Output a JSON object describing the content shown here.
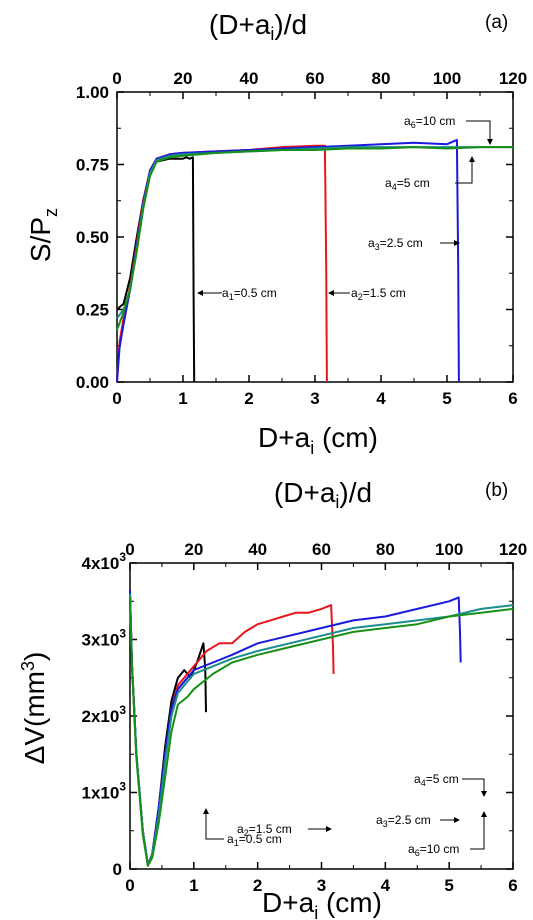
{
  "chart_data": [
    {
      "type": "line",
      "panel_label": "(a)",
      "ylabel": {
        "base": "S/P",
        "sub": "z"
      },
      "xlabel": {
        "base": "D+a",
        "sub": "i",
        "tail": " (cm)"
      },
      "x2label": {
        "pre": "(D+a",
        "sub": "i",
        "post": ")/d"
      },
      "xlim": [
        0,
        6
      ],
      "ylim": [
        0,
        1.0
      ],
      "x2lim": [
        0,
        120
      ],
      "xticks": [
        "0",
        "1",
        "2",
        "3",
        "4",
        "5",
        "6"
      ],
      "x2ticks": [
        "0",
        "20",
        "40",
        "60",
        "80",
        "100",
        "120"
      ],
      "yticks": [
        "0.00",
        "0.25",
        "0.50",
        "0.75",
        "1.00"
      ],
      "grid": false,
      "series": [
        {
          "ai": 0.5,
          "color": "#000000",
          "x": [
            0,
            0.05,
            0.1,
            0.2,
            0.3,
            0.4,
            0.5,
            0.6,
            0.7,
            0.8,
            0.9,
            1.0,
            1.05,
            1.1,
            1.15,
            1.16,
            1.17
          ],
          "y": [
            0.25,
            0.26,
            0.27,
            0.36,
            0.5,
            0.63,
            0.72,
            0.76,
            0.765,
            0.77,
            0.77,
            0.77,
            0.775,
            0.77,
            0.775,
            0.3,
            0.0
          ]
        },
        {
          "ai": 1.5,
          "color": "#e8141c",
          "x": [
            0,
            0.04,
            0.1,
            0.2,
            0.3,
            0.4,
            0.5,
            0.6,
            0.8,
            1.0,
            1.5,
            2.0,
            2.5,
            3.0,
            3.15,
            3.17,
            3.18
          ],
          "y": [
            0.0,
            0.14,
            0.22,
            0.33,
            0.48,
            0.63,
            0.73,
            0.77,
            0.785,
            0.79,
            0.795,
            0.8,
            0.81,
            0.815,
            0.815,
            0.4,
            0.0
          ]
        },
        {
          "ai": 2.5,
          "color": "#1a1adc",
          "x": [
            0,
            0.04,
            0.1,
            0.2,
            0.3,
            0.4,
            0.5,
            0.6,
            0.8,
            1.0,
            1.5,
            2.0,
            2.5,
            3.0,
            3.5,
            4.0,
            4.5,
            5.0,
            5.15,
            5.17,
            5.18
          ],
          "y": [
            0.0,
            0.12,
            0.2,
            0.32,
            0.47,
            0.62,
            0.73,
            0.77,
            0.785,
            0.79,
            0.795,
            0.8,
            0.805,
            0.81,
            0.815,
            0.82,
            0.825,
            0.82,
            0.835,
            0.4,
            0.0
          ]
        },
        {
          "ai": 5,
          "color": "#1c8c8c",
          "x": [
            0,
            0.1,
            0.2,
            0.3,
            0.4,
            0.5,
            0.6,
            0.8,
            1.0,
            1.5,
            2.0,
            2.5,
            3.0,
            3.5,
            4.0,
            4.5,
            5.0,
            5.5,
            6.0
          ],
          "y": [
            0.22,
            0.25,
            0.32,
            0.46,
            0.61,
            0.72,
            0.765,
            0.78,
            0.785,
            0.79,
            0.795,
            0.8,
            0.805,
            0.81,
            0.81,
            0.81,
            0.81,
            0.81,
            0.81
          ]
        },
        {
          "ai": 10,
          "color": "#179017",
          "x": [
            0,
            0.1,
            0.2,
            0.3,
            0.4,
            0.5,
            0.6,
            0.8,
            1.0,
            1.5,
            2.0,
            2.5,
            3.0,
            3.5,
            4.0,
            4.5,
            5.0,
            5.5,
            6.0
          ],
          "y": [
            0.18,
            0.24,
            0.32,
            0.45,
            0.6,
            0.71,
            0.76,
            0.775,
            0.78,
            0.79,
            0.795,
            0.8,
            0.8,
            0.805,
            0.805,
            0.81,
            0.805,
            0.81,
            0.81
          ]
        }
      ],
      "annotations": [
        {
          "text": "a",
          "sub": "1",
          "tail": "=0.5 cm"
        },
        {
          "text": "a",
          "sub": "2",
          "tail": "=1.5 cm"
        },
        {
          "text": "a",
          "sub": "3",
          "tail": "=2.5 cm"
        },
        {
          "text": "a",
          "sub": "4",
          "tail": "=5 cm"
        },
        {
          "text": "a",
          "sub": "6",
          "tail": "=10 cm"
        }
      ]
    },
    {
      "type": "line",
      "panel_label": "(b)",
      "ylabel": {
        "pre": "ΔV(mm",
        "sup": "3",
        "post": ")"
      },
      "xlabel": {
        "base": "D+a",
        "sub": "i",
        "tail": " (cm)"
      },
      "x2label": {
        "pre": "(D+a",
        "sub": "i",
        "post": ")/d"
      },
      "xlim": [
        0,
        6
      ],
      "ylim": [
        0,
        4000
      ],
      "x2lim": [
        0,
        120
      ],
      "xticks": [
        "0",
        "1",
        "2",
        "3",
        "4",
        "5",
        "6"
      ],
      "x2ticks": [
        "0",
        "20",
        "40",
        "60",
        "80",
        "100",
        "120"
      ],
      "yticks": [
        {
          "base": "0",
          "sup": ""
        },
        {
          "base": "1x10",
          "sup": "3"
        },
        {
          "base": "2x10",
          "sup": "3"
        },
        {
          "base": "3x10",
          "sup": "3"
        },
        {
          "base": "4x10",
          "sup": "3"
        }
      ],
      "grid": false,
      "series": [
        {
          "ai": 0.5,
          "color": "#000000",
          "x": [
            0,
            0.03,
            0.1,
            0.2,
            0.28,
            0.35,
            0.45,
            0.55,
            0.65,
            0.75,
            0.85,
            0.95,
            1.05,
            1.15,
            1.18,
            1.19
          ],
          "y": [
            3600,
            2700,
            1500,
            500,
            50,
            200,
            800,
            1600,
            2200,
            2500,
            2600,
            2500,
            2700,
            2950,
            2600,
            2050
          ]
        },
        {
          "ai": 1.5,
          "color": "#e8141c",
          "x": [
            0,
            0.03,
            0.1,
            0.2,
            0.28,
            0.35,
            0.45,
            0.55,
            0.65,
            0.75,
            0.9,
            1.0,
            1.2,
            1.4,
            1.6,
            1.8,
            2.0,
            2.2,
            2.4,
            2.6,
            2.8,
            3.0,
            3.15,
            3.18,
            3.19
          ],
          "y": [
            3600,
            2700,
            1500,
            500,
            50,
            200,
            800,
            1500,
            2100,
            2400,
            2550,
            2650,
            2850,
            2950,
            2950,
            3100,
            3200,
            3250,
            3300,
            3350,
            3350,
            3400,
            3450,
            2900,
            2550
          ]
        },
        {
          "ai": 2.5,
          "color": "#1a1adc",
          "x": [
            0,
            0.03,
            0.1,
            0.2,
            0.28,
            0.35,
            0.45,
            0.55,
            0.65,
            0.75,
            0.9,
            1.0,
            1.3,
            1.6,
            2.0,
            2.5,
            3.0,
            3.5,
            4.0,
            4.5,
            5.0,
            5.15,
            5.17,
            5.18
          ],
          "y": [
            3650,
            2700,
            1500,
            500,
            50,
            200,
            800,
            1500,
            2100,
            2350,
            2500,
            2600,
            2700,
            2800,
            2950,
            3050,
            3150,
            3250,
            3300,
            3400,
            3500,
            3550,
            3100,
            2700
          ]
        },
        {
          "ai": 5,
          "color": "#1c8c8c",
          "x": [
            0,
            0.03,
            0.1,
            0.2,
            0.28,
            0.35,
            0.45,
            0.55,
            0.65,
            0.75,
            0.9,
            1.0,
            1.3,
            1.6,
            2.0,
            2.5,
            3.0,
            3.5,
            4.0,
            4.5,
            5.0,
            5.5,
            6.0
          ],
          "y": [
            3600,
            2700,
            1500,
            500,
            50,
            200,
            700,
            1400,
            2000,
            2300,
            2450,
            2550,
            2650,
            2750,
            2850,
            2950,
            3050,
            3150,
            3200,
            3250,
            3300,
            3400,
            3450
          ]
        },
        {
          "ai": 10,
          "color": "#179017",
          "x": [
            0,
            0.03,
            0.1,
            0.2,
            0.28,
            0.35,
            0.45,
            0.55,
            0.65,
            0.75,
            0.9,
            1.0,
            1.3,
            1.6,
            2.0,
            2.5,
            3.0,
            3.5,
            4.0,
            4.5,
            5.0,
            5.5,
            6.0
          ],
          "y": [
            3550,
            2650,
            1450,
            450,
            40,
            150,
            600,
            1200,
            1800,
            2150,
            2250,
            2350,
            2550,
            2700,
            2800,
            2900,
            3000,
            3100,
            3150,
            3200,
            3300,
            3350,
            3400
          ]
        }
      ],
      "annotations": [
        {
          "text": "a",
          "sub": "1",
          "tail": "=0.5 cm"
        },
        {
          "text": "a",
          "sub": "2",
          "tail": "=1.5 cm"
        },
        {
          "text": "a",
          "sub": "3",
          "tail": "=2.5 cm"
        },
        {
          "text": "a",
          "sub": "4",
          "tail": "=5 cm"
        },
        {
          "text": "a",
          "sub": "6",
          "tail": "=10 cm"
        }
      ]
    }
  ]
}
